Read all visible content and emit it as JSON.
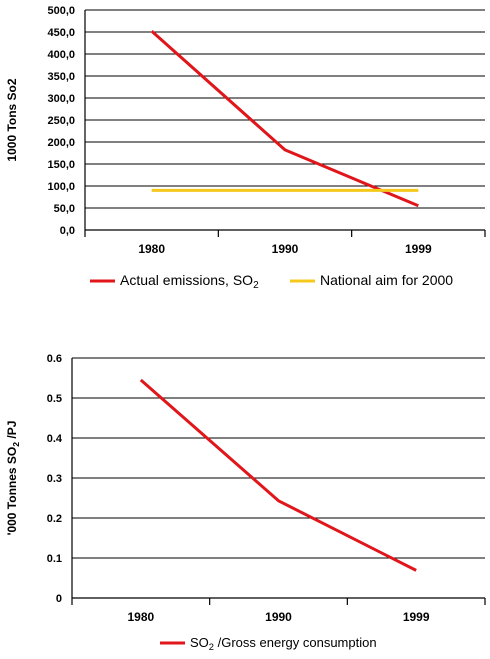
{
  "chart_data": [
    {
      "type": "line",
      "categories": [
        "1980",
        "1990",
        "1999"
      ],
      "ylabel": "1000 Tons So2",
      "ylim": [
        0,
        500
      ],
      "ytick_labels": [
        "0,0",
        "50,0",
        "100,0",
        "150,0",
        "200,0",
        "250,0",
        "300,0",
        "350,0",
        "400,0",
        "450,0",
        "500,0"
      ],
      "grid": true,
      "series": [
        {
          "name": "Actual emissions, SO",
          "name_sub": "2",
          "color": "#e0161b",
          "values": [
            452,
            182,
            55
          ]
        },
        {
          "name": "National aim for 2000",
          "color": "#f5c81c",
          "values": [
            90,
            90,
            90
          ]
        }
      ],
      "legend_position": "bottom"
    },
    {
      "type": "line",
      "categories": [
        "1980",
        "1990",
        "1999"
      ],
      "ylabel": "'000 Tonnes SO",
      "ylabel_sub": "2",
      "ylabel_suffix": " /PJ",
      "ylim": [
        0,
        0.6
      ],
      "ytick_labels": [
        "0",
        "0.1",
        "0.2",
        "0.3",
        "0.4",
        "0.5",
        "0.6"
      ],
      "grid": true,
      "series": [
        {
          "name": "SO",
          "name_sub": "2",
          "name_suffix": " /Gross energy consumption",
          "color": "#e0161b",
          "values": [
            0.545,
            0.243,
            0.069
          ]
        }
      ],
      "legend_position": "bottom"
    }
  ]
}
